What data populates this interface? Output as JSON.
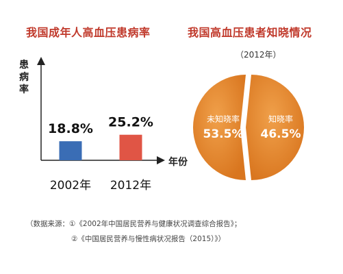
{
  "chart_data": [
    {
      "type": "bar",
      "title": "我国成年人高血压患病率",
      "ylabel": "患病率",
      "xlabel": "年份",
      "categories": [
        "2002年",
        "2012年"
      ],
      "values": [
        18.8,
        25.2
      ],
      "value_labels": [
        "18.8%",
        "25.2%"
      ],
      "colors": [
        "#3a6db5",
        "#e05545"
      ],
      "ylim": [
        0,
        100
      ]
    },
    {
      "type": "pie",
      "title": "我国高血压患者知晓情况",
      "subtitle": "（2012年）",
      "labels": [
        "未知晓率",
        "知晓率"
      ],
      "values": [
        53.5,
        46.5
      ],
      "value_labels": [
        "53.5%",
        "46.5%"
      ],
      "colors": [
        "#e08a2c",
        "#e08a2c"
      ]
    }
  ],
  "source": {
    "line1": "（数据来源：①《2002年中国居民营养与健康状况调查综合报告》；",
    "line2": "②《中国居民营养与慢性病状况报告（2015）》）"
  }
}
